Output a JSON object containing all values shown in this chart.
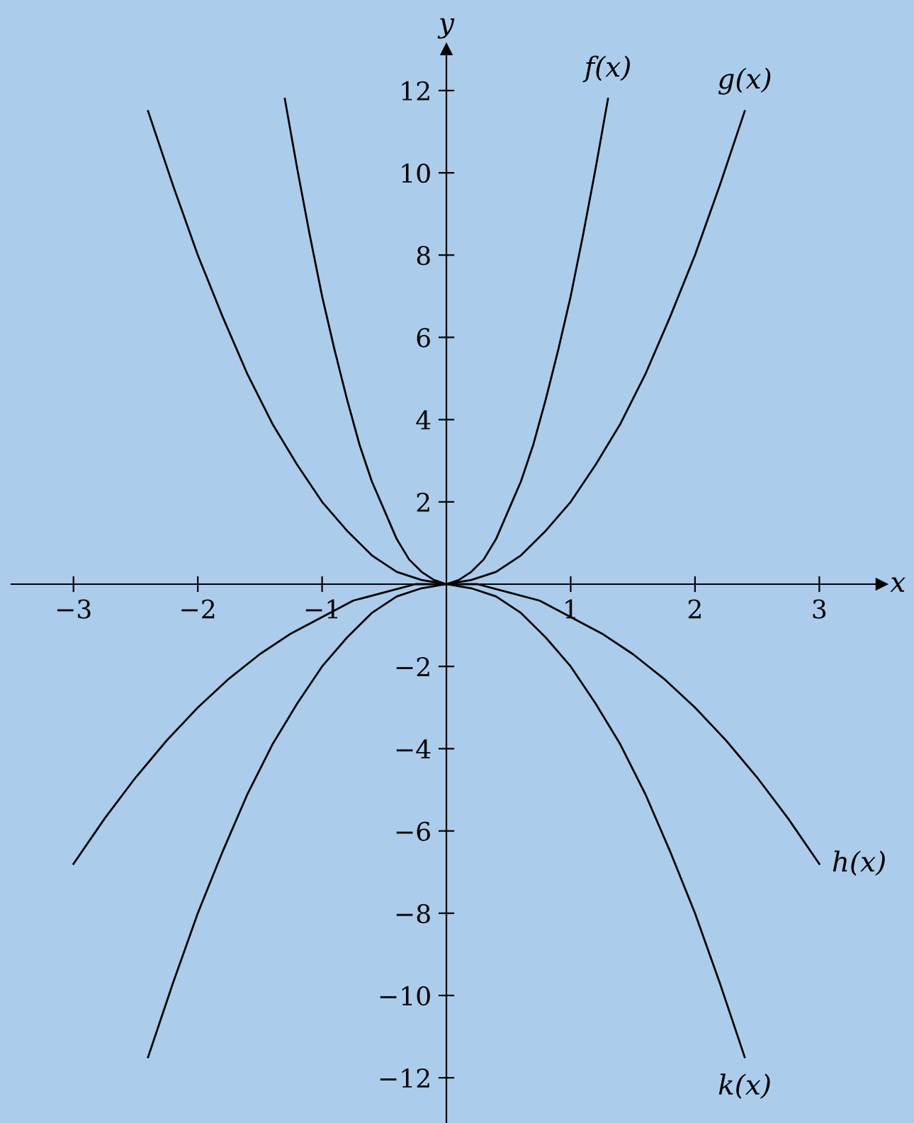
{
  "chart_data": {
    "type": "line",
    "xlabel": "x",
    "ylabel": "y",
    "xlim": [
      -3.5,
      3.5
    ],
    "ylim": [
      -13.1,
      13
    ],
    "xticks": [
      -3,
      -2,
      -1,
      1,
      2,
      3
    ],
    "yticks": [
      -12,
      -10,
      -8,
      -6,
      -4,
      -2,
      2,
      4,
      6,
      8,
      10,
      12
    ],
    "grid": false,
    "legend": false,
    "marker": "none",
    "line_style": "solid",
    "series": [
      {
        "name": "f(x)",
        "color": "#000000",
        "x": [
          -1.3,
          -1.2,
          -1.1,
          -1.0,
          -0.9,
          -0.8,
          -0.7,
          -0.6,
          -0.5,
          -0.4,
          -0.3,
          -0.2,
          -0.1,
          0,
          0.1,
          0.2,
          0.3,
          0.4,
          0.5,
          0.6,
          0.7,
          0.8,
          0.9,
          1.0,
          1.1,
          1.2,
          1.3
        ],
        "values": [
          11.8,
          10.1,
          8.5,
          7,
          5.7,
          4.5,
          3.4,
          2.5,
          1.8,
          1.1,
          0.6,
          0.3,
          0.1,
          0,
          0.1,
          0.3,
          0.6,
          1.1,
          1.8,
          2.5,
          3.4,
          4.5,
          5.7,
          7,
          8.5,
          10.1,
          11.8
        ]
      },
      {
        "name": "g(x)",
        "color": "#000000",
        "x": [
          -2.4,
          -2.2,
          -2.0,
          -1.8,
          -1.6,
          -1.4,
          -1.2,
          -1.0,
          -0.8,
          -0.6,
          -0.4,
          -0.2,
          0,
          0.2,
          0.4,
          0.6,
          0.8,
          1.0,
          1.2,
          1.4,
          1.6,
          1.8,
          2.0,
          2.2,
          2.4
        ],
        "values": [
          11.5,
          9.7,
          8,
          6.5,
          5.1,
          3.9,
          2.9,
          2,
          1.3,
          0.7,
          0.3,
          0.1,
          0,
          0.1,
          0.3,
          0.7,
          1.3,
          2,
          2.9,
          3.9,
          5.1,
          6.5,
          8,
          9.7,
          11.5
        ]
      },
      {
        "name": "h(x)",
        "color": "#000000",
        "x": [
          -3,
          -2.75,
          -2.5,
          -2.25,
          -2,
          -1.75,
          -1.5,
          -1.25,
          -1,
          -0.75,
          -0.5,
          -0.25,
          0,
          0.25,
          0.5,
          0.75,
          1,
          1.25,
          1.5,
          1.75,
          2,
          2.25,
          2.5,
          2.75,
          3
        ],
        "values": [
          -6.8,
          -5.7,
          -4.7,
          -3.8,
          -3,
          -2.3,
          -1.7,
          -1.2,
          -0.8,
          -0.4,
          -0.2,
          0,
          0,
          0,
          -0.2,
          -0.4,
          -0.8,
          -1.2,
          -1.7,
          -2.3,
          -3,
          -3.8,
          -4.7,
          -5.7,
          -6.8
        ]
      },
      {
        "name": "k(x)",
        "color": "#000000",
        "x": [
          -2.4,
          -2.2,
          -2.0,
          -1.8,
          -1.6,
          -1.4,
          -1.2,
          -1.0,
          -0.8,
          -0.6,
          -0.4,
          -0.2,
          0,
          0.2,
          0.4,
          0.6,
          0.8,
          1.0,
          1.2,
          1.4,
          1.6,
          1.8,
          2.0,
          2.2,
          2.4
        ],
        "values": [
          -11.5,
          -9.7,
          -8,
          -6.5,
          -5.1,
          -3.9,
          -2.9,
          -2,
          -1.3,
          -0.7,
          -0.3,
          -0.1,
          0,
          -0.1,
          -0.3,
          -0.7,
          -1.3,
          -2,
          -2.9,
          -3.9,
          -5.1,
          -6.5,
          -8,
          -9.7,
          -11.5
        ]
      }
    ]
  }
}
